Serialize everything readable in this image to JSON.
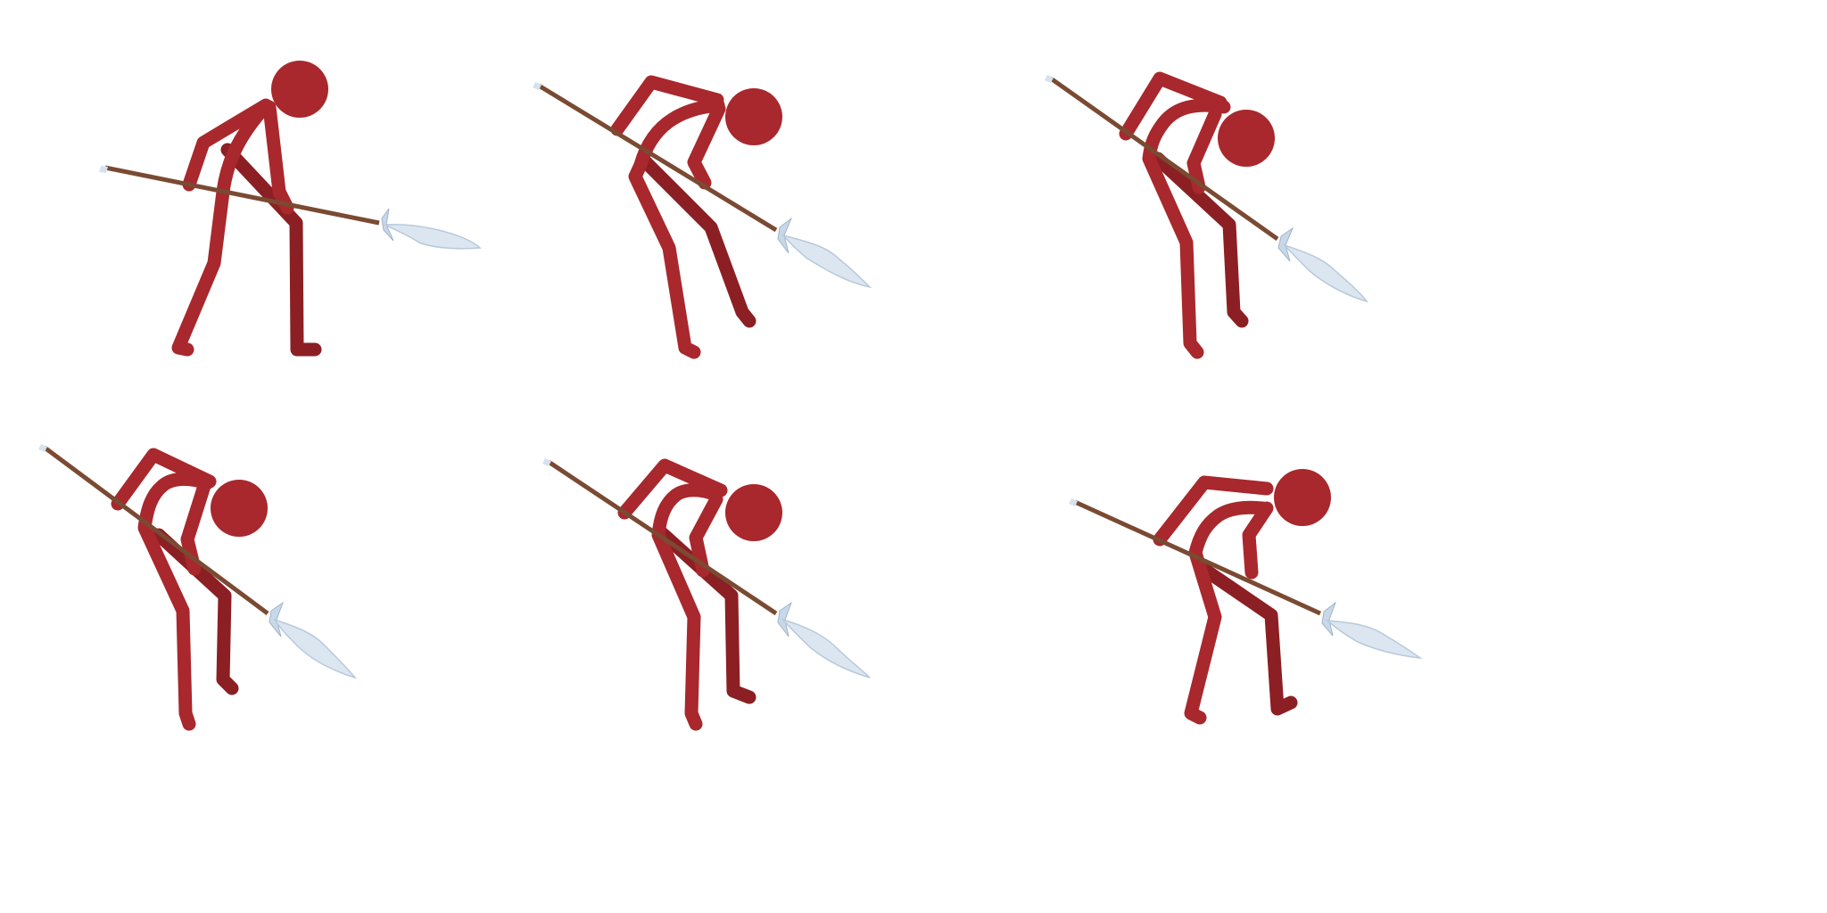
{
  "sprite_sheet": {
    "character": "red-stickman-spearman",
    "colors": {
      "body": "#a8282d",
      "body_back": "#8c1f23",
      "spear_shaft": "#7a4a32",
      "spear_blade": "#dbe6f1",
      "background": "#ffffff"
    },
    "frames": [
      {
        "name": "frame-1"
      },
      {
        "name": "frame-2"
      },
      {
        "name": "frame-3"
      },
      {
        "name": "frame-4"
      },
      {
        "name": "frame-5"
      },
      {
        "name": "frame-6"
      }
    ]
  }
}
